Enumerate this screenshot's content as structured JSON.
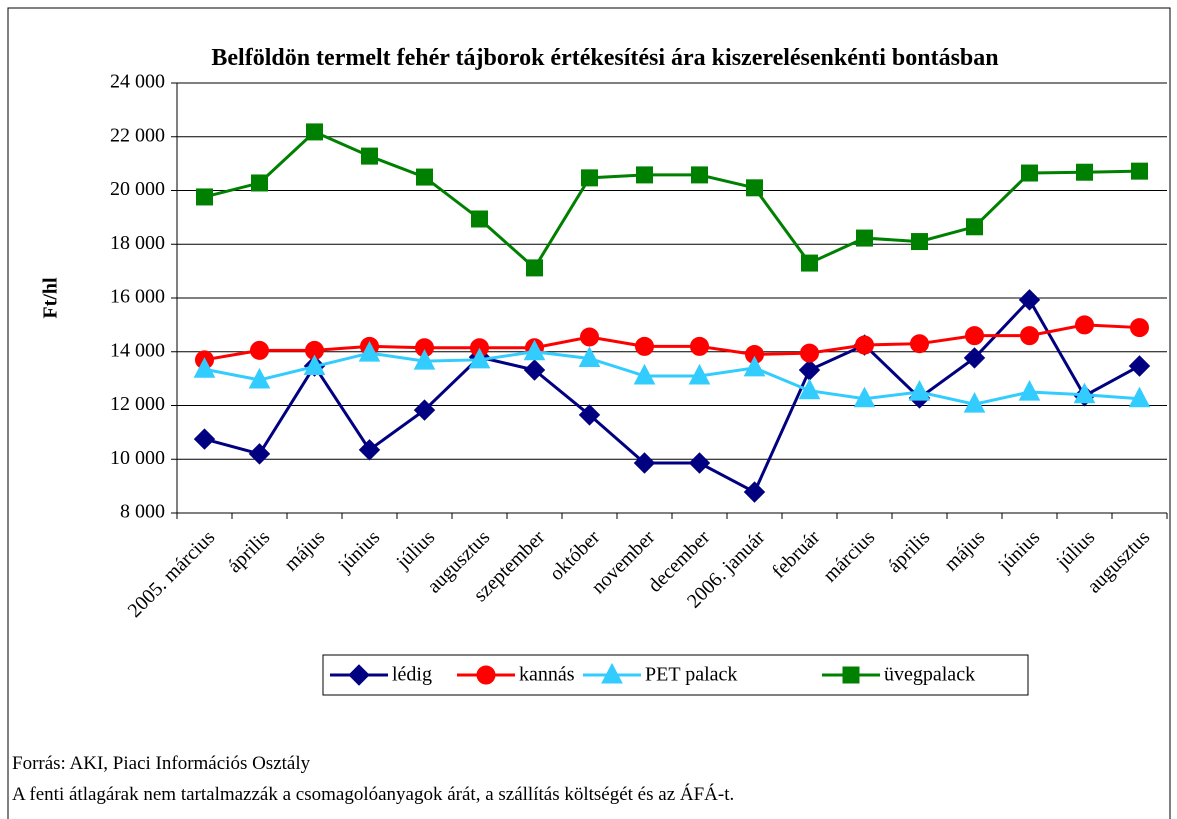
{
  "chart_data": {
    "type": "line",
    "title": "Belföldön termelt fehér tájborok értékesítési ára kiszerelésenkénti bontásban",
    "y_label": "Ft/hl",
    "categories": [
      "2005. március",
      "április",
      "május",
      "június",
      "július",
      "augusztus",
      "szeptember",
      "október",
      "november",
      "december",
      "2006. január",
      "február",
      "március",
      "április",
      "május",
      "június",
      "július",
      "augusztus"
    ],
    "series": [
      {
        "name": "lédig",
        "color": "#000080",
        "marker": "diamond",
        "values": [
          10750,
          10200,
          13470,
          10350,
          11830,
          13800,
          13320,
          11650,
          9860,
          9860,
          8780,
          13320,
          14250,
          12280,
          13770,
          15930,
          12360,
          13470
        ]
      },
      {
        "name": "kannás",
        "color": "#ff0000",
        "marker": "circle",
        "values": [
          13700,
          14050,
          14050,
          14200,
          14150,
          14150,
          14150,
          14550,
          14200,
          14200,
          13900,
          13950,
          14250,
          14300,
          14600,
          14600,
          15000,
          14900
        ]
      },
      {
        "name": "PET palack",
        "color": "#33ccff",
        "marker": "triangle",
        "values": [
          13350,
          12950,
          13450,
          13950,
          13650,
          13700,
          14000,
          13750,
          13100,
          13100,
          13400,
          12550,
          12250,
          12500,
          12050,
          12500,
          12400,
          12250
        ]
      },
      {
        "name": "üvegpalack",
        "color": "#008000",
        "marker": "square",
        "values": [
          19760,
          20280,
          22180,
          21280,
          20500,
          18940,
          17120,
          20470,
          20580,
          20580,
          20100,
          17300,
          18230,
          18100,
          18650,
          20650,
          20680,
          20720
        ]
      }
    ],
    "ylim": [
      8000,
      24000
    ],
    "yticks": [
      {
        "value": 8000,
        "label": "8 000"
      },
      {
        "value": 10000,
        "label": "10 000"
      },
      {
        "value": 12000,
        "label": "12 000"
      },
      {
        "value": 14000,
        "label": "14 000"
      },
      {
        "value": 16000,
        "label": "16 000"
      },
      {
        "value": 18000,
        "label": "18 000"
      },
      {
        "value": 20000,
        "label": "20 000"
      },
      {
        "value": 22000,
        "label": "22 000"
      },
      {
        "value": 24000,
        "label": "24 000"
      }
    ],
    "grid": true,
    "legend": "bottom"
  },
  "notes": [
    "Forrás: AKI, Piaci Információs Osztály",
    "A fenti átlagárak nem tartalmazzák a csomagolóanyagok árát, a szállítás költségét és az ÁFÁ-t."
  ]
}
